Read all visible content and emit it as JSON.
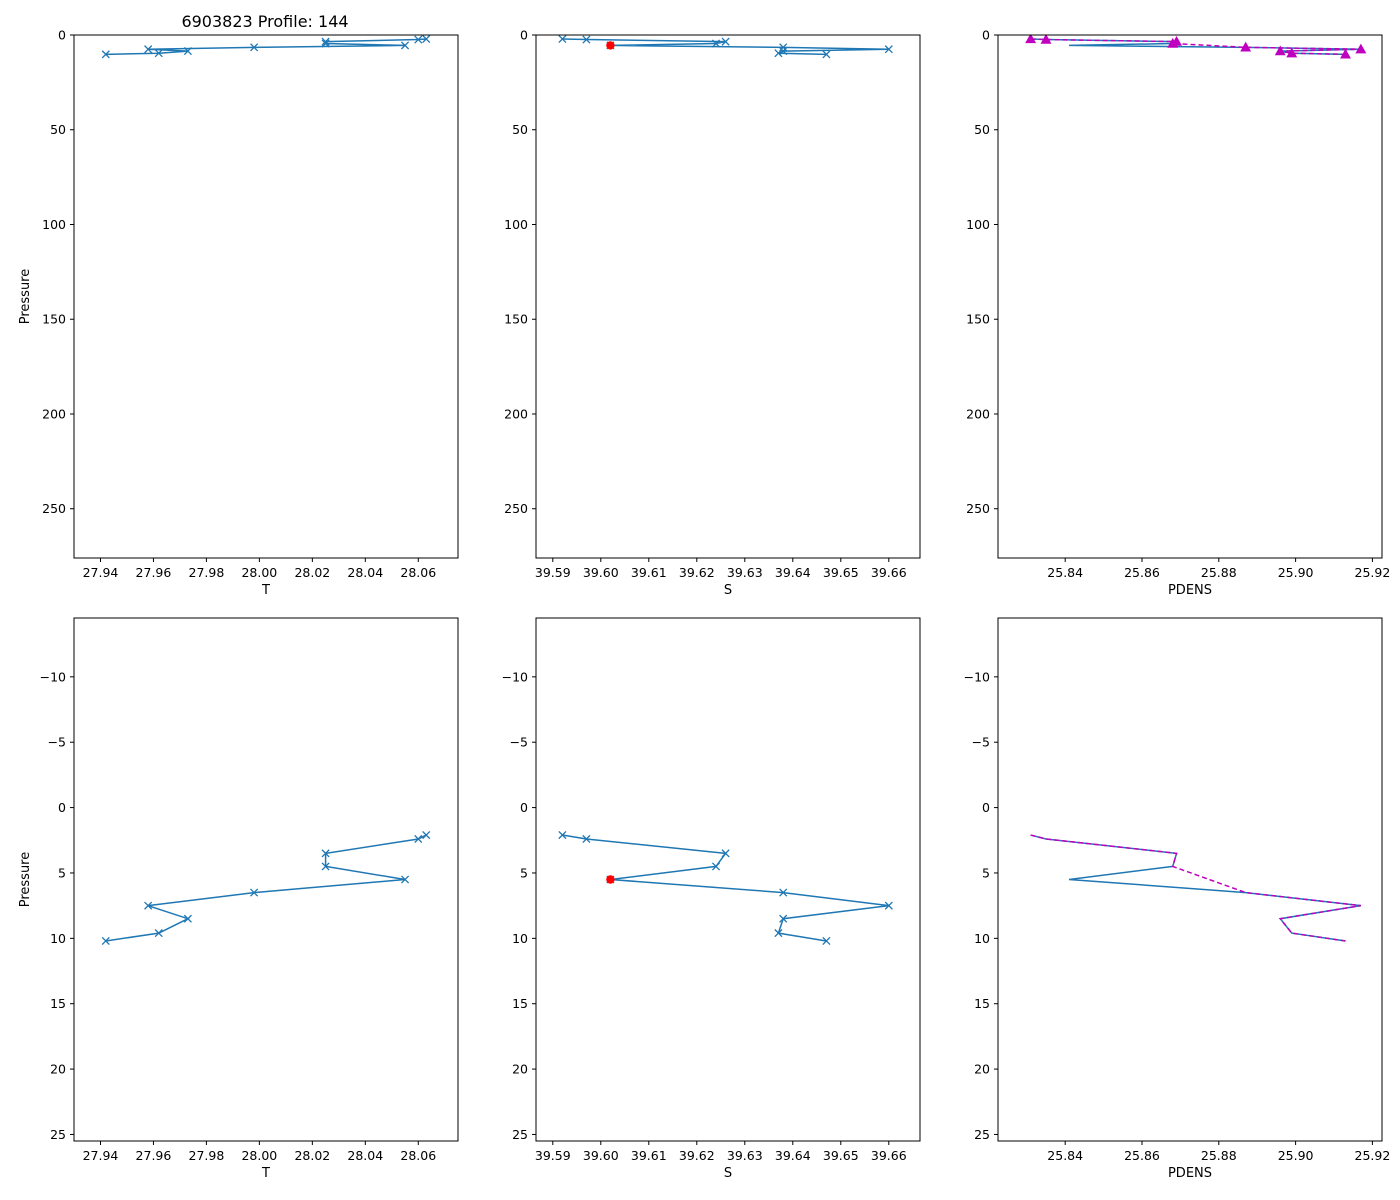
{
  "figure_title": "6903823 Profile: 144",
  "colors": {
    "series": "#1f77b4",
    "highlight": "#ff0000",
    "pdens_overlay": "#bf00bf",
    "axis": "#000000"
  },
  "chart_data": [
    {
      "type": "line",
      "panel": "top-left",
      "xlabel": "T",
      "ylabel": "Pressure",
      "xlim": [
        27.93,
        28.075
      ],
      "ylim": [
        276,
        0
      ],
      "xticks": [
        27.94,
        27.96,
        27.98,
        28.0,
        28.02,
        28.04,
        28.06
      ],
      "xtick_labels": [
        "27.94",
        "27.96",
        "27.98",
        "28.00",
        "28.02",
        "28.04",
        "28.06"
      ],
      "yticks": [
        0,
        50,
        100,
        150,
        200,
        250
      ],
      "ytick_labels": [
        "0",
        "50",
        "100",
        "150",
        "200",
        "250"
      ],
      "series": [
        {
          "name": "T",
          "marker": "x",
          "x": [
            28.063,
            28.06,
            28.025,
            28.025,
            28.055,
            27.998,
            27.958,
            27.973,
            27.962,
            27.942
          ],
          "y": [
            2.1,
            2.4,
            3.5,
            4.5,
            5.5,
            6.5,
            7.5,
            8.5,
            9.6,
            10.2
          ]
        }
      ]
    },
    {
      "type": "line",
      "panel": "top-middle",
      "xlabel": "S",
      "ylabel": "",
      "xlim": [
        39.5865,
        39.6665
      ],
      "ylim": [
        276,
        0
      ],
      "xticks": [
        39.59,
        39.6,
        39.61,
        39.62,
        39.63,
        39.64,
        39.65,
        39.66
      ],
      "xtick_labels": [
        "39.59",
        "39.60",
        "39.61",
        "39.62",
        "39.63",
        "39.64",
        "39.65",
        "39.66"
      ],
      "yticks": [
        0,
        50,
        100,
        150,
        200,
        250
      ],
      "ytick_labels": [
        "0",
        "50",
        "100",
        "150",
        "200",
        "250"
      ],
      "series": [
        {
          "name": "S",
          "marker": "x",
          "x": [
            39.592,
            39.597,
            39.626,
            39.624,
            39.602,
            39.638,
            39.66,
            39.638,
            39.637,
            39.647
          ],
          "y": [
            2.1,
            2.4,
            3.5,
            4.5,
            5.5,
            6.5,
            7.5,
            8.5,
            9.6,
            10.2
          ]
        }
      ],
      "highlight_points": [
        {
          "x": 39.602,
          "y": 5.5
        }
      ]
    },
    {
      "type": "line",
      "panel": "top-right",
      "xlabel": "PDENS",
      "ylabel": "",
      "xlim": [
        25.8225,
        25.9225
      ],
      "ylim": [
        276,
        0
      ],
      "xticks": [
        25.84,
        25.86,
        25.88,
        25.9,
        25.92
      ],
      "xtick_labels": [
        "25.84",
        "25.86",
        "25.88",
        "25.90",
        "25.92"
      ],
      "yticks": [
        0,
        50,
        100,
        150,
        200,
        250
      ],
      "ytick_labels": [
        "0",
        "50",
        "100",
        "150",
        "200",
        "250"
      ],
      "series": [
        {
          "name": "PDENS",
          "marker": "none",
          "x": [
            25.831,
            25.835,
            25.869,
            25.868,
            25.841,
            25.887,
            25.917,
            25.896,
            25.899,
            25.913
          ],
          "y": [
            2.1,
            2.4,
            3.5,
            4.5,
            5.5,
            6.5,
            7.5,
            8.5,
            9.6,
            10.2
          ]
        },
        {
          "name": "PDENS computed",
          "marker": "triangle",
          "dashed": true,
          "x": [
            25.831,
            25.835,
            25.869,
            25.868,
            25.887,
            25.917,
            25.896,
            25.899,
            25.913
          ],
          "y": [
            2.1,
            2.4,
            3.5,
            4.5,
            6.5,
            7.5,
            8.5,
            9.6,
            10.2
          ]
        }
      ]
    },
    {
      "type": "line",
      "panel": "bottom-left",
      "xlabel": "T",
      "ylabel": "Pressure",
      "xlim": [
        27.93,
        28.075
      ],
      "ylim": [
        25.5,
        -14.5
      ],
      "xticks": [
        27.94,
        27.96,
        27.98,
        28.0,
        28.02,
        28.04,
        28.06
      ],
      "xtick_labels": [
        "27.94",
        "27.96",
        "27.98",
        "28.00",
        "28.02",
        "28.04",
        "28.06"
      ],
      "yticks": [
        -10,
        -5,
        0,
        5,
        10,
        15,
        20,
        25
      ],
      "ytick_labels": [
        "−10",
        "−5",
        "0",
        "5",
        "10",
        "15",
        "20",
        "25"
      ],
      "series": [
        {
          "name": "T",
          "marker": "x",
          "x": [
            28.063,
            28.06,
            28.025,
            28.025,
            28.055,
            27.998,
            27.958,
            27.973,
            27.962,
            27.942
          ],
          "y": [
            2.1,
            2.4,
            3.5,
            4.5,
            5.5,
            6.5,
            7.5,
            8.5,
            9.6,
            10.2
          ]
        }
      ]
    },
    {
      "type": "line",
      "panel": "bottom-middle",
      "xlabel": "S",
      "ylabel": "",
      "xlim": [
        39.5865,
        39.6665
      ],
      "ylim": [
        25.5,
        -14.5
      ],
      "xticks": [
        39.59,
        39.6,
        39.61,
        39.62,
        39.63,
        39.64,
        39.65,
        39.66
      ],
      "xtick_labels": [
        "39.59",
        "39.60",
        "39.61",
        "39.62",
        "39.63",
        "39.64",
        "39.65",
        "39.66"
      ],
      "yticks": [
        -10,
        -5,
        0,
        5,
        10,
        15,
        20,
        25
      ],
      "ytick_labels": [
        "−10",
        "−5",
        "0",
        "5",
        "10",
        "15",
        "20",
        "25"
      ],
      "series": [
        {
          "name": "S",
          "marker": "x",
          "x": [
            39.592,
            39.597,
            39.626,
            39.624,
            39.602,
            39.638,
            39.66,
            39.638,
            39.637,
            39.647
          ],
          "y": [
            2.1,
            2.4,
            3.5,
            4.5,
            5.5,
            6.5,
            7.5,
            8.5,
            9.6,
            10.2
          ]
        }
      ],
      "highlight_points": [
        {
          "x": 39.602,
          "y": 5.5
        }
      ]
    },
    {
      "type": "line",
      "panel": "bottom-right",
      "xlabel": "PDENS",
      "ylabel": "",
      "xlim": [
        25.8225,
        25.9225
      ],
      "ylim": [
        25.5,
        -14.5
      ],
      "xticks": [
        25.84,
        25.86,
        25.88,
        25.9,
        25.92
      ],
      "xtick_labels": [
        "25.84",
        "25.86",
        "25.88",
        "25.90",
        "25.92"
      ],
      "yticks": [
        -10,
        -5,
        0,
        5,
        10,
        15,
        20,
        25
      ],
      "ytick_labels": [
        "−10",
        "−5",
        "0",
        "5",
        "10",
        "15",
        "20",
        "25"
      ],
      "series": [
        {
          "name": "PDENS",
          "marker": "none",
          "x": [
            25.831,
            25.835,
            25.869,
            25.868,
            25.841,
            25.887,
            25.917,
            25.896,
            25.899,
            25.913
          ],
          "y": [
            2.1,
            2.4,
            3.5,
            4.5,
            5.5,
            6.5,
            7.5,
            8.5,
            9.6,
            10.2
          ]
        },
        {
          "name": "PDENS computed",
          "marker": "none",
          "dashed": true,
          "x": [
            25.831,
            25.835,
            25.869,
            25.868,
            25.887,
            25.917,
            25.896,
            25.899,
            25.913
          ],
          "y": [
            2.1,
            2.4,
            3.5,
            4.5,
            6.5,
            7.5,
            8.5,
            9.6,
            10.2
          ]
        }
      ]
    }
  ]
}
